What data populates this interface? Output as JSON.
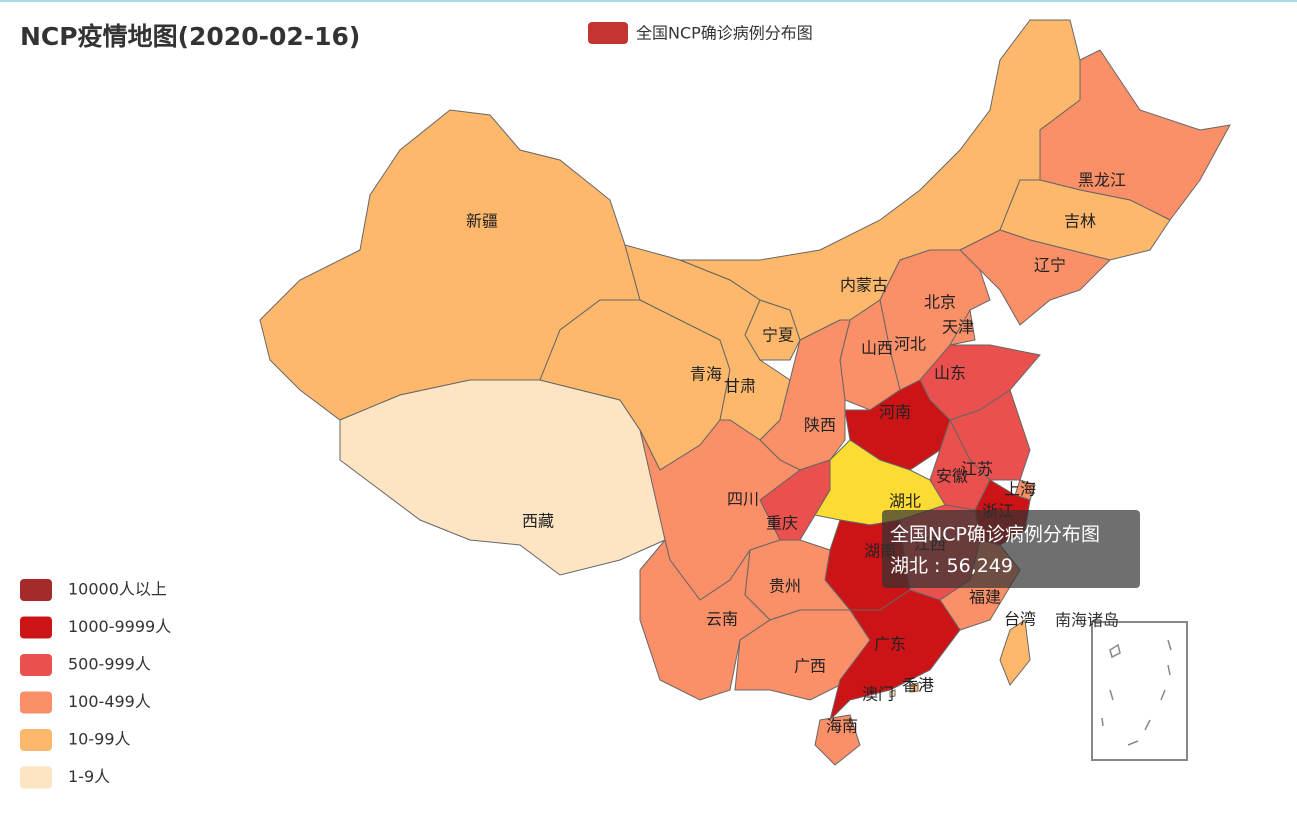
{
  "title": "NCP疫情地图(2020-02-16)",
  "legend": {
    "name": "全国NCP确诊病例分布图",
    "color": "#c23531"
  },
  "pieces": [
    {
      "label": "10000人以上",
      "color": "#a52a2a"
    },
    {
      "label": "1000-9999人",
      "color": "#cc1417"
    },
    {
      "label": "500-999人",
      "color": "#e9504e"
    },
    {
      "label": "100-499人",
      "color": "#fb8f68"
    },
    {
      "label": "10-99人",
      "color": "#feb86c"
    },
    {
      "label": "1-9人",
      "color": "#fde5c3"
    }
  ],
  "provinces": [
    {
      "name": "新疆",
      "color": "#feb86c"
    },
    {
      "name": "西藏",
      "color": "#fde5c3"
    },
    {
      "name": "青海",
      "color": "#feb86c"
    },
    {
      "name": "甘肃",
      "color": "#feb86c"
    },
    {
      "name": "宁夏",
      "color": "#feb86c"
    },
    {
      "name": "内蒙古",
      "color": "#feb86c"
    },
    {
      "name": "黑龙江",
      "color": "#fb8f68"
    },
    {
      "name": "吉林",
      "color": "#feb86c"
    },
    {
      "name": "辽宁",
      "color": "#fb8f68"
    },
    {
      "name": "北京",
      "color": "#fb8f68"
    },
    {
      "name": "天津",
      "color": "#fb8f68"
    },
    {
      "name": "河北",
      "color": "#fb8f68"
    },
    {
      "name": "山西",
      "color": "#fb8f68"
    },
    {
      "name": "山东",
      "color": "#e9504e"
    },
    {
      "name": "河南",
      "color": "#cc1417"
    },
    {
      "name": "陕西",
      "color": "#fb8f68"
    },
    {
      "name": "江苏",
      "color": "#e9504e"
    },
    {
      "name": "安徽",
      "color": "#e9504e"
    },
    {
      "name": "上海",
      "color": "#fb8f68"
    },
    {
      "name": "浙江",
      "color": "#cc1417"
    },
    {
      "name": "江西",
      "color": "#e9504e"
    },
    {
      "name": "福建",
      "color": "#fb8f68"
    },
    {
      "name": "台湾",
      "color": "#feb86c"
    },
    {
      "name": "湖北",
      "color": "#fcdc33"
    },
    {
      "name": "重庆",
      "color": "#e9504e"
    },
    {
      "name": "四川",
      "color": "#fb8f68"
    },
    {
      "name": "湖南",
      "color": "#cc1417"
    },
    {
      "name": "贵州",
      "color": "#fb8f68"
    },
    {
      "name": "云南",
      "color": "#fb8f68"
    },
    {
      "name": "广西",
      "color": "#fb8f68"
    },
    {
      "name": "广东",
      "color": "#cc1417"
    },
    {
      "name": "海南",
      "color": "#fb8f68"
    },
    {
      "name": "香港",
      "color": "#feb86c"
    },
    {
      "name": "澳门",
      "color": "#fde5c3"
    }
  ],
  "inset_label": "南海诸岛",
  "tooltip": {
    "series": "全国NCP确诊病例分布图",
    "name": "湖北",
    "separator": " : ",
    "value": 56249,
    "value_label": "56,249"
  }
}
